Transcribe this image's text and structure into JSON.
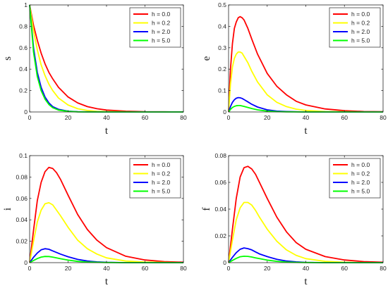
{
  "chart_data": [
    {
      "type": "line",
      "xlabel": "t",
      "ylabel": "s",
      "xlim": [
        0,
        80
      ],
      "ylim": [
        0,
        1
      ],
      "xticks": [
        0,
        20,
        40,
        60,
        80
      ],
      "xtick_labels": [
        "0",
        "20",
        "40",
        "60",
        "80"
      ],
      "yticks": [
        0,
        0.2,
        0.4,
        0.6,
        0.8,
        1
      ],
      "ytick_labels": [
        "0",
        "0.2",
        "0.4",
        "0.6",
        "0.8",
        "1"
      ],
      "legend": "top-right",
      "series": [
        {
          "name": "h = 0.0",
          "color": "#ff0000",
          "x": [
            0,
            2,
            4,
            6,
            8,
            10,
            12,
            15,
            20,
            25,
            30,
            35,
            40,
            50,
            60,
            70,
            80
          ],
          "y": [
            1,
            0.81,
            0.67,
            0.55,
            0.45,
            0.37,
            0.31,
            0.23,
            0.14,
            0.085,
            0.05,
            0.03,
            0.018,
            0.007,
            0.002,
            0.001,
            0
          ]
        },
        {
          "name": "h = 0.2",
          "color": "#ffff00",
          "x": [
            0,
            2,
            4,
            6,
            8,
            10,
            12,
            15,
            20,
            25,
            30,
            35,
            40,
            50,
            60,
            70,
            80
          ],
          "y": [
            1,
            0.76,
            0.58,
            0.44,
            0.34,
            0.26,
            0.2,
            0.13,
            0.065,
            0.03,
            0.014,
            0.006,
            0.003,
            0.001,
            0,
            0,
            0
          ]
        },
        {
          "name": "h = 2.0",
          "color": "#0000ff",
          "x": [
            0,
            2,
            4,
            6,
            8,
            10,
            12,
            15,
            20,
            25,
            30,
            40,
            50,
            60,
            70,
            80
          ],
          "y": [
            1,
            0.6,
            0.37,
            0.23,
            0.14,
            0.085,
            0.05,
            0.025,
            0.007,
            0.002,
            0.001,
            0,
            0,
            0,
            0,
            0
          ]
        },
        {
          "name": "h = 5.0",
          "color": "#00ff00",
          "x": [
            0,
            2,
            4,
            6,
            8,
            10,
            12,
            15,
            20,
            25,
            30,
            40,
            50,
            60,
            70,
            80
          ],
          "y": [
            1,
            0.56,
            0.33,
            0.2,
            0.12,
            0.07,
            0.04,
            0.018,
            0.005,
            0.001,
            0,
            0,
            0,
            0,
            0,
            0
          ]
        }
      ]
    },
    {
      "type": "line",
      "xlabel": "t",
      "ylabel": "e",
      "xlim": [
        0,
        80
      ],
      "ylim": [
        0,
        0.5
      ],
      "xticks": [
        0,
        20,
        40,
        60,
        80
      ],
      "xtick_labels": [
        "0",
        "20",
        "40",
        "60",
        "80"
      ],
      "yticks": [
        0,
        0.1,
        0.2,
        0.3,
        0.4,
        0.5
      ],
      "ytick_labels": [
        "0",
        "0.1",
        "0.2",
        "0.3",
        "0.4",
        "0.5"
      ],
      "legend": "top-right",
      "series": [
        {
          "name": "h = 0.0",
          "color": "#ff0000",
          "x": [
            0,
            1,
            2,
            3,
            4,
            5,
            6,
            7,
            8,
            10,
            12,
            15,
            20,
            25,
            30,
            35,
            40,
            50,
            60,
            70,
            80
          ],
          "y": [
            0,
            0.2,
            0.32,
            0.39,
            0.42,
            0.44,
            0.445,
            0.44,
            0.43,
            0.39,
            0.34,
            0.27,
            0.18,
            0.12,
            0.08,
            0.05,
            0.033,
            0.014,
            0.006,
            0.002,
            0.001
          ]
        },
        {
          "name": "h = 0.2",
          "color": "#ffff00",
          "x": [
            0,
            1,
            2,
            3,
            4,
            5,
            6,
            7,
            8,
            10,
            12,
            15,
            20,
            25,
            30,
            35,
            40,
            50,
            60,
            70,
            80
          ],
          "y": [
            0,
            0.13,
            0.21,
            0.25,
            0.27,
            0.28,
            0.28,
            0.275,
            0.26,
            0.23,
            0.19,
            0.14,
            0.08,
            0.045,
            0.025,
            0.013,
            0.007,
            0.002,
            0.001,
            0,
            0
          ]
        },
        {
          "name": "h = 2.0",
          "color": "#0000ff",
          "x": [
            0,
            1,
            2,
            3,
            4,
            5,
            6,
            7,
            8,
            10,
            12,
            15,
            20,
            25,
            30,
            40,
            50,
            60,
            70,
            80
          ],
          "y": [
            0,
            0.025,
            0.045,
            0.057,
            0.064,
            0.067,
            0.066,
            0.063,
            0.058,
            0.047,
            0.036,
            0.023,
            0.01,
            0.004,
            0.002,
            0,
            0,
            0,
            0,
            0
          ]
        },
        {
          "name": "h = 5.0",
          "color": "#00ff00",
          "x": [
            0,
            1,
            2,
            3,
            4,
            5,
            6,
            7,
            8,
            10,
            12,
            15,
            20,
            25,
            30,
            40,
            50,
            60,
            70,
            80
          ],
          "y": [
            0,
            0.012,
            0.021,
            0.026,
            0.029,
            0.03,
            0.03,
            0.028,
            0.026,
            0.021,
            0.016,
            0.01,
            0.004,
            0.0015,
            0.0005,
            0,
            0,
            0,
            0,
            0
          ]
        }
      ]
    },
    {
      "type": "line",
      "xlabel": "t",
      "ylabel": "i",
      "xlim": [
        0,
        80
      ],
      "ylim": [
        0,
        0.1
      ],
      "xticks": [
        0,
        20,
        40,
        60,
        80
      ],
      "xtick_labels": [
        "0",
        "20",
        "40",
        "60",
        "80"
      ],
      "yticks": [
        0,
        0.02,
        0.04,
        0.06,
        0.08,
        0.1
      ],
      "ytick_labels": [
        "0",
        "0.02",
        "0.04",
        "0.06",
        "0.08",
        "0.1"
      ],
      "legend": "top-right",
      "series": [
        {
          "name": "h = 0.0",
          "color": "#ff0000",
          "x": [
            0,
            2,
            4,
            6,
            8,
            10,
            12,
            14,
            16,
            20,
            25,
            30,
            35,
            40,
            50,
            60,
            70,
            80
          ],
          "y": [
            0,
            0.03,
            0.058,
            0.075,
            0.085,
            0.089,
            0.088,
            0.084,
            0.078,
            0.063,
            0.045,
            0.031,
            0.021,
            0.014,
            0.006,
            0.0025,
            0.001,
            0.0004
          ]
        },
        {
          "name": "h = 0.2",
          "color": "#ffff00",
          "x": [
            0,
            2,
            4,
            6,
            8,
            10,
            12,
            14,
            16,
            20,
            25,
            30,
            35,
            40,
            50,
            60,
            70,
            80
          ],
          "y": [
            0,
            0.02,
            0.038,
            0.049,
            0.055,
            0.056,
            0.054,
            0.049,
            0.044,
            0.033,
            0.021,
            0.013,
            0.008,
            0.0045,
            0.0015,
            0.0005,
            0.0002,
            0
          ]
        },
        {
          "name": "h = 2.0",
          "color": "#0000ff",
          "x": [
            0,
            2,
            4,
            6,
            8,
            10,
            12,
            14,
            16,
            20,
            25,
            30,
            35,
            40,
            50,
            60,
            70,
            80
          ],
          "y": [
            0,
            0.005,
            0.009,
            0.012,
            0.013,
            0.0125,
            0.011,
            0.0095,
            0.008,
            0.0055,
            0.003,
            0.0015,
            0.0007,
            0.0003,
            0,
            0,
            0,
            0
          ]
        },
        {
          "name": "h = 5.0",
          "color": "#00ff00",
          "x": [
            0,
            2,
            4,
            6,
            8,
            10,
            12,
            14,
            16,
            20,
            25,
            30,
            35,
            40,
            50,
            60,
            70,
            80
          ],
          "y": [
            0,
            0.002,
            0.0038,
            0.0052,
            0.0058,
            0.0057,
            0.0052,
            0.0045,
            0.0037,
            0.0024,
            0.0012,
            0.0006,
            0.0003,
            0.0001,
            0,
            0,
            0,
            0
          ]
        }
      ]
    },
    {
      "type": "line",
      "xlabel": "t",
      "ylabel": "f",
      "xlim": [
        0,
        80
      ],
      "ylim": [
        0,
        0.08
      ],
      "xticks": [
        0,
        20,
        40,
        60,
        80
      ],
      "xtick_labels": [
        "0",
        "20",
        "40",
        "60",
        "80"
      ],
      "yticks": [
        0,
        0.02,
        0.04,
        0.06,
        0.08
      ],
      "ytick_labels": [
        "0",
        "0.02",
        "0.04",
        "0.06",
        "0.08"
      ],
      "legend": "top-right",
      "series": [
        {
          "name": "h = 0.0",
          "color": "#ff0000",
          "x": [
            0,
            2,
            4,
            6,
            8,
            10,
            12,
            14,
            16,
            20,
            25,
            30,
            35,
            40,
            50,
            60,
            70,
            80
          ],
          "y": [
            0,
            0.025,
            0.048,
            0.064,
            0.071,
            0.072,
            0.07,
            0.066,
            0.06,
            0.048,
            0.034,
            0.023,
            0.015,
            0.01,
            0.0045,
            0.002,
            0.0008,
            0.0003
          ]
        },
        {
          "name": "h = 0.2",
          "color": "#ffff00",
          "x": [
            0,
            2,
            4,
            6,
            8,
            10,
            12,
            14,
            16,
            20,
            25,
            30,
            35,
            40,
            50,
            60,
            70,
            80
          ],
          "y": [
            0,
            0.017,
            0.032,
            0.041,
            0.045,
            0.045,
            0.043,
            0.039,
            0.034,
            0.025,
            0.016,
            0.0095,
            0.0055,
            0.003,
            0.001,
            0.0003,
            0,
            0
          ]
        },
        {
          "name": "h = 2.0",
          "color": "#0000ff",
          "x": [
            0,
            2,
            4,
            6,
            8,
            10,
            12,
            14,
            16,
            20,
            25,
            30,
            35,
            40,
            50,
            60,
            70,
            80
          ],
          "y": [
            0,
            0.004,
            0.0075,
            0.01,
            0.011,
            0.0105,
            0.0095,
            0.008,
            0.0065,
            0.0045,
            0.0025,
            0.0012,
            0.0006,
            0.0002,
            0,
            0,
            0,
            0
          ]
        },
        {
          "name": "h = 5.0",
          "color": "#00ff00",
          "x": [
            0,
            2,
            4,
            6,
            8,
            10,
            12,
            14,
            16,
            20,
            25,
            30,
            35,
            40,
            50,
            60,
            70,
            80
          ],
          "y": [
            0,
            0.0017,
            0.0032,
            0.0044,
            0.0048,
            0.0047,
            0.0042,
            0.0036,
            0.003,
            0.0019,
            0.001,
            0.0005,
            0.0002,
            0.0001,
            0,
            0,
            0,
            0
          ]
        }
      ]
    }
  ]
}
